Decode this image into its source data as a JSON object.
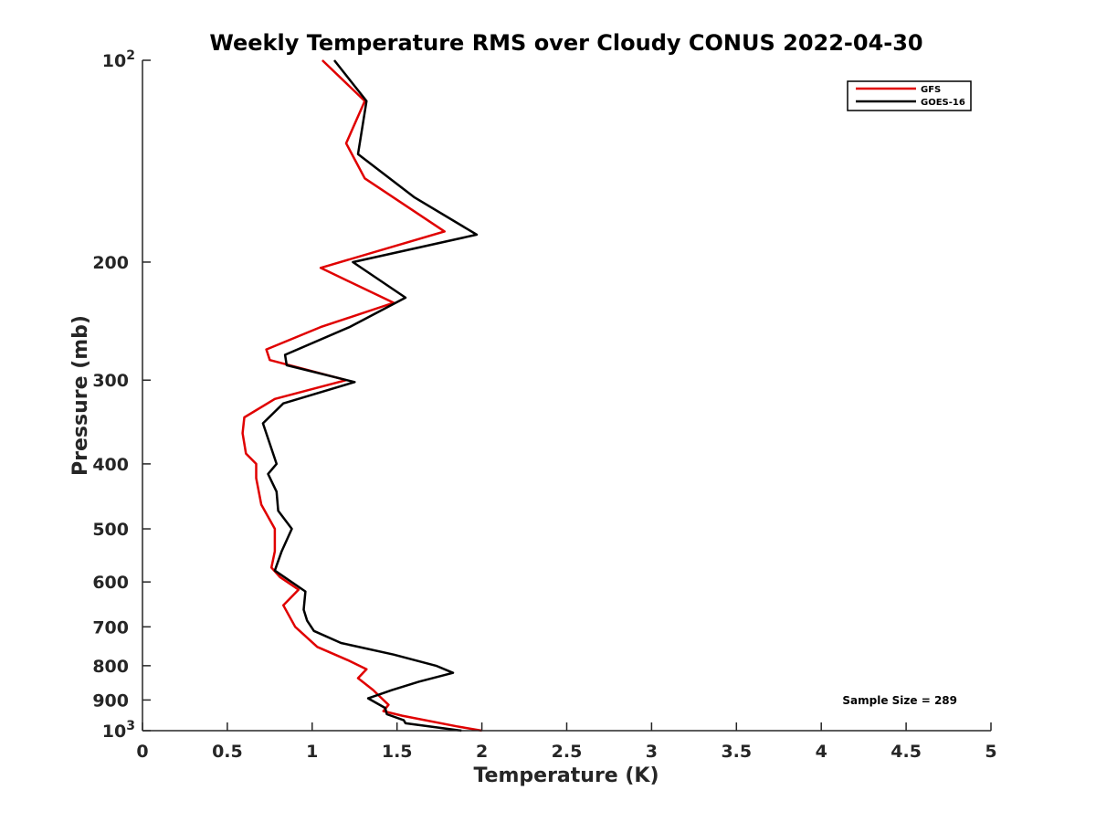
{
  "chart_data": {
    "type": "line",
    "title": "Weekly Temperature RMS over Cloudy CONUS 2022-04-30",
    "xlabel": "Temperature (K)",
    "ylabel": "Pressure (mb)",
    "xlim": [
      0,
      5
    ],
    "ylim": [
      100,
      1000
    ],
    "y_scale": "log",
    "y_reversed": true,
    "grid": false,
    "legend_position": "top-right",
    "x_ticks": [
      {
        "value": 0,
        "label": "0"
      },
      {
        "value": 0.5,
        "label": "0.5"
      },
      {
        "value": 1,
        "label": "1"
      },
      {
        "value": 1.5,
        "label": "1.5"
      },
      {
        "value": 2,
        "label": "2"
      },
      {
        "value": 2.5,
        "label": "2.5"
      },
      {
        "value": 3,
        "label": "3"
      },
      {
        "value": 3.5,
        "label": "3.5"
      },
      {
        "value": 4,
        "label": "4"
      },
      {
        "value": 4.5,
        "label": "4.5"
      },
      {
        "value": 5,
        "label": "5"
      }
    ],
    "y_ticks": [
      {
        "value": 100,
        "base": "10",
        "exp": "2"
      },
      {
        "value": 200,
        "label": "200"
      },
      {
        "value": 300,
        "label": "300"
      },
      {
        "value": 400,
        "label": "400"
      },
      {
        "value": 500,
        "label": "500"
      },
      {
        "value": 600,
        "label": "600"
      },
      {
        "value": 700,
        "label": "700"
      },
      {
        "value": 800,
        "label": "800"
      },
      {
        "value": 900,
        "label": "900"
      },
      {
        "value": 1000,
        "base": "10",
        "exp": "3"
      }
    ],
    "series": [
      {
        "name": "GFS",
        "color": "#e00000",
        "points": [
          [
            1.06,
            100
          ],
          [
            1.31,
            115
          ],
          [
            1.2,
            133
          ],
          [
            1.31,
            150
          ],
          [
            1.78,
            180
          ],
          [
            1.05,
            204
          ],
          [
            1.48,
            230
          ],
          [
            1.05,
            250
          ],
          [
            0.73,
            270
          ],
          [
            0.75,
            280
          ],
          [
            1.2,
            300
          ],
          [
            0.78,
            320
          ],
          [
            0.6,
            341
          ],
          [
            0.59,
            360
          ],
          [
            0.61,
            386
          ],
          [
            0.67,
            400
          ],
          [
            0.67,
            420
          ],
          [
            0.7,
            460
          ],
          [
            0.78,
            500
          ],
          [
            0.78,
            540
          ],
          [
            0.76,
            571
          ],
          [
            0.81,
            590
          ],
          [
            0.92,
            616
          ],
          [
            0.83,
            650
          ],
          [
            0.9,
            700
          ],
          [
            1.03,
            750
          ],
          [
            1.21,
            785
          ],
          [
            1.32,
            810
          ],
          [
            1.27,
            835
          ],
          [
            1.36,
            870
          ],
          [
            1.4,
            890
          ],
          [
            1.45,
            915
          ],
          [
            1.42,
            935
          ],
          [
            1.53,
            950
          ],
          [
            1.85,
            985
          ],
          [
            2.0,
            1000
          ]
        ]
      },
      {
        "name": "GOES-16",
        "color": "#000000",
        "points": [
          [
            1.13,
            100
          ],
          [
            1.32,
            115
          ],
          [
            1.27,
            138
          ],
          [
            1.6,
            160
          ],
          [
            1.97,
            182
          ],
          [
            1.24,
            200
          ],
          [
            1.55,
            226
          ],
          [
            1.22,
            250
          ],
          [
            0.84,
            275
          ],
          [
            0.85,
            285
          ],
          [
            1.25,
            302
          ],
          [
            0.83,
            325
          ],
          [
            0.71,
            348
          ],
          [
            0.79,
            400
          ],
          [
            0.74,
            414
          ],
          [
            0.79,
            440
          ],
          [
            0.8,
            470
          ],
          [
            0.88,
            500
          ],
          [
            0.82,
            540
          ],
          [
            0.78,
            577
          ],
          [
            0.96,
            620
          ],
          [
            0.95,
            660
          ],
          [
            0.97,
            685
          ],
          [
            1.01,
            710
          ],
          [
            1.17,
            740
          ],
          [
            1.48,
            770
          ],
          [
            1.73,
            800
          ],
          [
            1.83,
            820
          ],
          [
            1.63,
            845
          ],
          [
            1.47,
            870
          ],
          [
            1.33,
            895
          ],
          [
            1.43,
            925
          ],
          [
            1.44,
            945
          ],
          [
            1.54,
            965
          ],
          [
            1.55,
            975
          ],
          [
            1.88,
            1000
          ]
        ]
      }
    ],
    "annotation": "Sample Size = 289"
  }
}
